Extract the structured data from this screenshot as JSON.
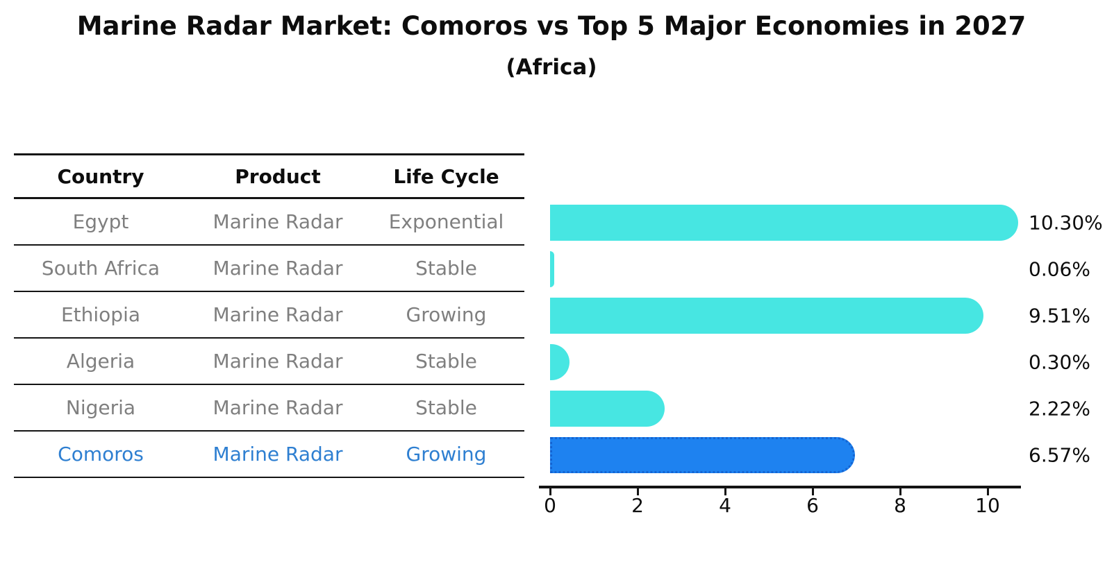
{
  "title": "Marine Radar Market: Comoros vs Top 5 Major Economies in 2027",
  "subtitle": "(Africa)",
  "table": {
    "headers": [
      "Country",
      "Product",
      "Life Cycle"
    ],
    "rows": [
      {
        "country": "Egypt",
        "product": "Marine Radar",
        "life_cycle": "Exponential",
        "highlight": false
      },
      {
        "country": "South Africa",
        "product": "Marine Radar",
        "life_cycle": "Stable",
        "highlight": false
      },
      {
        "country": "Ethiopia",
        "product": "Marine Radar",
        "life_cycle": "Growing",
        "highlight": false
      },
      {
        "country": "Algeria",
        "product": "Marine Radar",
        "life_cycle": "Stable",
        "highlight": false
      },
      {
        "country": "Nigeria",
        "product": "Marine Radar",
        "life_cycle": "Stable",
        "highlight": false
      },
      {
        "country": "Comoros",
        "product": "Marine Radar",
        "life_cycle": "Growing",
        "highlight": true
      }
    ]
  },
  "chart_data": {
    "type": "bar",
    "orientation": "horizontal",
    "title": "Marine Radar Market: Comoros vs Top 5 Major Economies in 2027",
    "subtitle": "(Africa)",
    "categories": [
      "Egypt",
      "South Africa",
      "Ethiopia",
      "Algeria",
      "Nigeria",
      "Comoros"
    ],
    "values": [
      10.3,
      0.06,
      9.51,
      0.3,
      2.22,
      6.57
    ],
    "value_labels": [
      "10.30%",
      "0.06%",
      "9.51%",
      "0.30%",
      "2.22%",
      "6.57%"
    ],
    "units": "percent",
    "x_ticks": [
      0,
      2,
      4,
      6,
      8,
      10
    ],
    "xlim": [
      0,
      10.8
    ],
    "grid": false,
    "legend": false,
    "highlight_category": "Comoros"
  },
  "colors": {
    "background": "#ffffff",
    "bar": "#47E6E2",
    "highlight_bar_fill": "#1E82F0",
    "highlight_bar_edge": "#1464D2",
    "highlight_text": "#2E7FD1",
    "table_text": "#7f7f7f",
    "ink": "#0d0d0d",
    "line": "#141414"
  }
}
